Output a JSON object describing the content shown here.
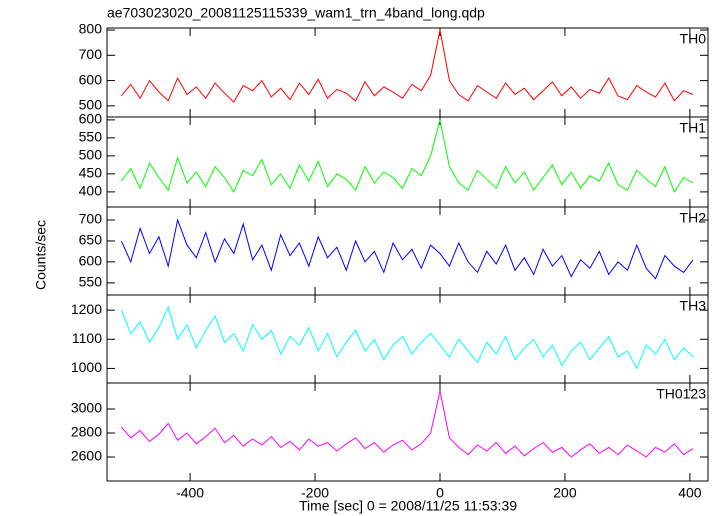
{
  "title": "ae703023020_20081125115339_wam1_trn_4band_long.qdp",
  "y_label": "Counts/sec",
  "x_label": "Time [sec] 0 = 2008/11/25 11:53:39",
  "chart_data": [
    {
      "type": "line",
      "xlim": [
        -533,
        429
      ],
      "ylim": [
        456,
        808
      ],
      "yticks": [
        500,
        600,
        700,
        800
      ],
      "x": [
        -510,
        -495,
        -480,
        -465,
        -450,
        -435,
        -420,
        -405,
        -390,
        -375,
        -360,
        -345,
        -330,
        -315,
        -300,
        -285,
        -270,
        -255,
        -240,
        -225,
        -210,
        -195,
        -180,
        -165,
        -150,
        -135,
        -120,
        -105,
        -90,
        -75,
        -60,
        -45,
        -30,
        -15,
        0,
        15,
        30,
        45,
        60,
        75,
        90,
        105,
        120,
        135,
        150,
        165,
        180,
        195,
        210,
        225,
        240,
        255,
        270,
        285,
        300,
        315,
        330,
        345,
        360,
        375,
        390,
        405
      ],
      "series": [
        {
          "name": "TH0",
          "color": "#ff0000",
          "values": [
            540,
            585,
            530,
            600,
            555,
            520,
            610,
            545,
            575,
            530,
            590,
            550,
            515,
            580,
            560,
            600,
            535,
            570,
            525,
            590,
            545,
            605,
            530,
            565,
            550,
            520,
            595,
            540,
            575,
            555,
            530,
            585,
            560,
            620,
            800,
            600,
            545,
            520,
            580,
            555,
            530,
            590,
            545,
            570,
            525,
            560,
            595,
            540,
            575,
            530,
            565,
            550,
            610,
            540,
            525,
            580,
            555,
            535,
            590,
            520,
            560,
            545
          ]
        }
      ]
    },
    {
      "type": "line",
      "xlim": [
        -533,
        429
      ],
      "ylim": [
        358,
        608
      ],
      "yticks": [
        400,
        450,
        500,
        550,
        600
      ],
      "x": [
        -510,
        -495,
        -480,
        -465,
        -450,
        -435,
        -420,
        -405,
        -390,
        -375,
        -360,
        -345,
        -330,
        -315,
        -300,
        -285,
        -270,
        -255,
        -240,
        -225,
        -210,
        -195,
        -180,
        -165,
        -150,
        -135,
        -120,
        -105,
        -90,
        -75,
        -60,
        -45,
        -30,
        -15,
        0,
        15,
        30,
        45,
        60,
        75,
        90,
        105,
        120,
        135,
        150,
        165,
        180,
        195,
        210,
        225,
        240,
        255,
        270,
        285,
        300,
        315,
        330,
        345,
        360,
        375,
        390,
        405
      ],
      "series": [
        {
          "name": "TH1",
          "color": "#00ff00",
          "values": [
            430,
            465,
            410,
            480,
            440,
            405,
            495,
            425,
            455,
            415,
            470,
            440,
            400,
            460,
            445,
            490,
            420,
            450,
            410,
            475,
            430,
            485,
            415,
            450,
            435,
            405,
            470,
            425,
            455,
            440,
            410,
            465,
            445,
            500,
            600,
            470,
            425,
            405,
            460,
            435,
            410,
            470,
            425,
            455,
            405,
            440,
            475,
            420,
            455,
            410,
            445,
            430,
            480,
            420,
            405,
            460,
            435,
            415,
            470,
            400,
            440,
            425
          ]
        }
      ]
    },
    {
      "type": "line",
      "xlim": [
        -533,
        429
      ],
      "ylim": [
        521,
        731
      ],
      "yticks": [
        550,
        600,
        650,
        700
      ],
      "x": [
        -510,
        -495,
        -480,
        -465,
        -450,
        -435,
        -420,
        -405,
        -390,
        -375,
        -360,
        -345,
        -330,
        -315,
        -300,
        -285,
        -270,
        -255,
        -240,
        -225,
        -210,
        -195,
        -180,
        -165,
        -150,
        -135,
        -120,
        -105,
        -90,
        -75,
        -60,
        -45,
        -30,
        -15,
        0,
        15,
        30,
        45,
        60,
        75,
        90,
        105,
        120,
        135,
        150,
        165,
        180,
        195,
        210,
        225,
        240,
        255,
        270,
        285,
        300,
        315,
        330,
        345,
        360,
        375,
        390,
        405
      ],
      "series": [
        {
          "name": "TH2",
          "color": "#0000ff",
          "values": [
            650,
            600,
            680,
            620,
            660,
            590,
            700,
            640,
            610,
            670,
            600,
            655,
            620,
            690,
            605,
            640,
            580,
            665,
            615,
            645,
            590,
            660,
            610,
            635,
            580,
            650,
            600,
            625,
            575,
            645,
            605,
            630,
            585,
            640,
            620,
            590,
            645,
            600,
            575,
            625,
            595,
            640,
            580,
            610,
            570,
            630,
            590,
            615,
            565,
            605,
            585,
            625,
            570,
            600,
            580,
            640,
            585,
            560,
            615,
            590,
            575,
            605
          ]
        }
      ]
    },
    {
      "type": "line",
      "xlim": [
        -533,
        429
      ],
      "ylim": [
        950,
        1252
      ],
      "yticks": [
        1000,
        1100,
        1200
      ],
      "x": [
        -510,
        -495,
        -480,
        -465,
        -450,
        -435,
        -420,
        -405,
        -390,
        -375,
        -360,
        -345,
        -330,
        -315,
        -300,
        -285,
        -270,
        -255,
        -240,
        -225,
        -210,
        -195,
        -180,
        -165,
        -150,
        -135,
        -120,
        -105,
        -90,
        -75,
        -60,
        -45,
        -30,
        -15,
        0,
        15,
        30,
        45,
        60,
        75,
        90,
        105,
        120,
        135,
        150,
        165,
        180,
        195,
        210,
        225,
        240,
        255,
        270,
        285,
        300,
        315,
        330,
        345,
        360,
        375,
        390,
        405
      ],
      "series": [
        {
          "name": "TH3",
          "color": "#00ffff",
          "values": [
            1200,
            1120,
            1160,
            1090,
            1140,
            1210,
            1100,
            1150,
            1070,
            1130,
            1180,
            1090,
            1120,
            1060,
            1150,
            1100,
            1130,
            1050,
            1110,
            1080,
            1140,
            1060,
            1120,
            1040,
            1090,
            1130,
            1060,
            1100,
            1030,
            1080,
            1110,
            1050,
            1090,
            1120,
            1080,
            1040,
            1100,
            1060,
            1020,
            1090,
            1050,
            1110,
            1030,
            1070,
            1100,
            1040,
            1080,
            1010,
            1060,
            1090,
            1030,
            1070,
            1110,
            1040,
            1060,
            1000,
            1080,
            1050,
            1100,
            1030,
            1070,
            1040
          ]
        }
      ]
    },
    {
      "type": "line",
      "xlim": [
        -533,
        429
      ],
      "ylim": [
        2400,
        3217
      ],
      "yticks": [
        2600,
        2800,
        3000
      ],
      "xticks": [
        -400,
        -200,
        0,
        200,
        400
      ],
      "x": [
        -510,
        -495,
        -480,
        -465,
        -450,
        -435,
        -420,
        -405,
        -390,
        -375,
        -360,
        -345,
        -330,
        -315,
        -300,
        -285,
        -270,
        -255,
        -240,
        -225,
        -210,
        -195,
        -180,
        -165,
        -150,
        -135,
        -120,
        -105,
        -90,
        -75,
        -60,
        -45,
        -30,
        -15,
        0,
        15,
        30,
        45,
        60,
        75,
        90,
        105,
        120,
        135,
        150,
        165,
        180,
        195,
        210,
        225,
        240,
        255,
        270,
        285,
        300,
        315,
        330,
        345,
        360,
        375,
        390,
        405
      ],
      "series": [
        {
          "name": "TH0123",
          "color": "#ff00ff",
          "values": [
            2850,
            2760,
            2820,
            2730,
            2790,
            2880,
            2740,
            2800,
            2710,
            2770,
            2840,
            2720,
            2780,
            2690,
            2750,
            2700,
            2770,
            2680,
            2730,
            2660,
            2750,
            2690,
            2720,
            2650,
            2710,
            2760,
            2670,
            2720,
            2640,
            2700,
            2740,
            2660,
            2710,
            2800,
            3150,
            2760,
            2680,
            2620,
            2700,
            2650,
            2720,
            2630,
            2690,
            2610,
            2670,
            2720,
            2640,
            2680,
            2600,
            2660,
            2710,
            2630,
            2680,
            2620,
            2700,
            2650,
            2600,
            2680,
            2640,
            2710,
            2620,
            2670
          ]
        }
      ]
    }
  ]
}
